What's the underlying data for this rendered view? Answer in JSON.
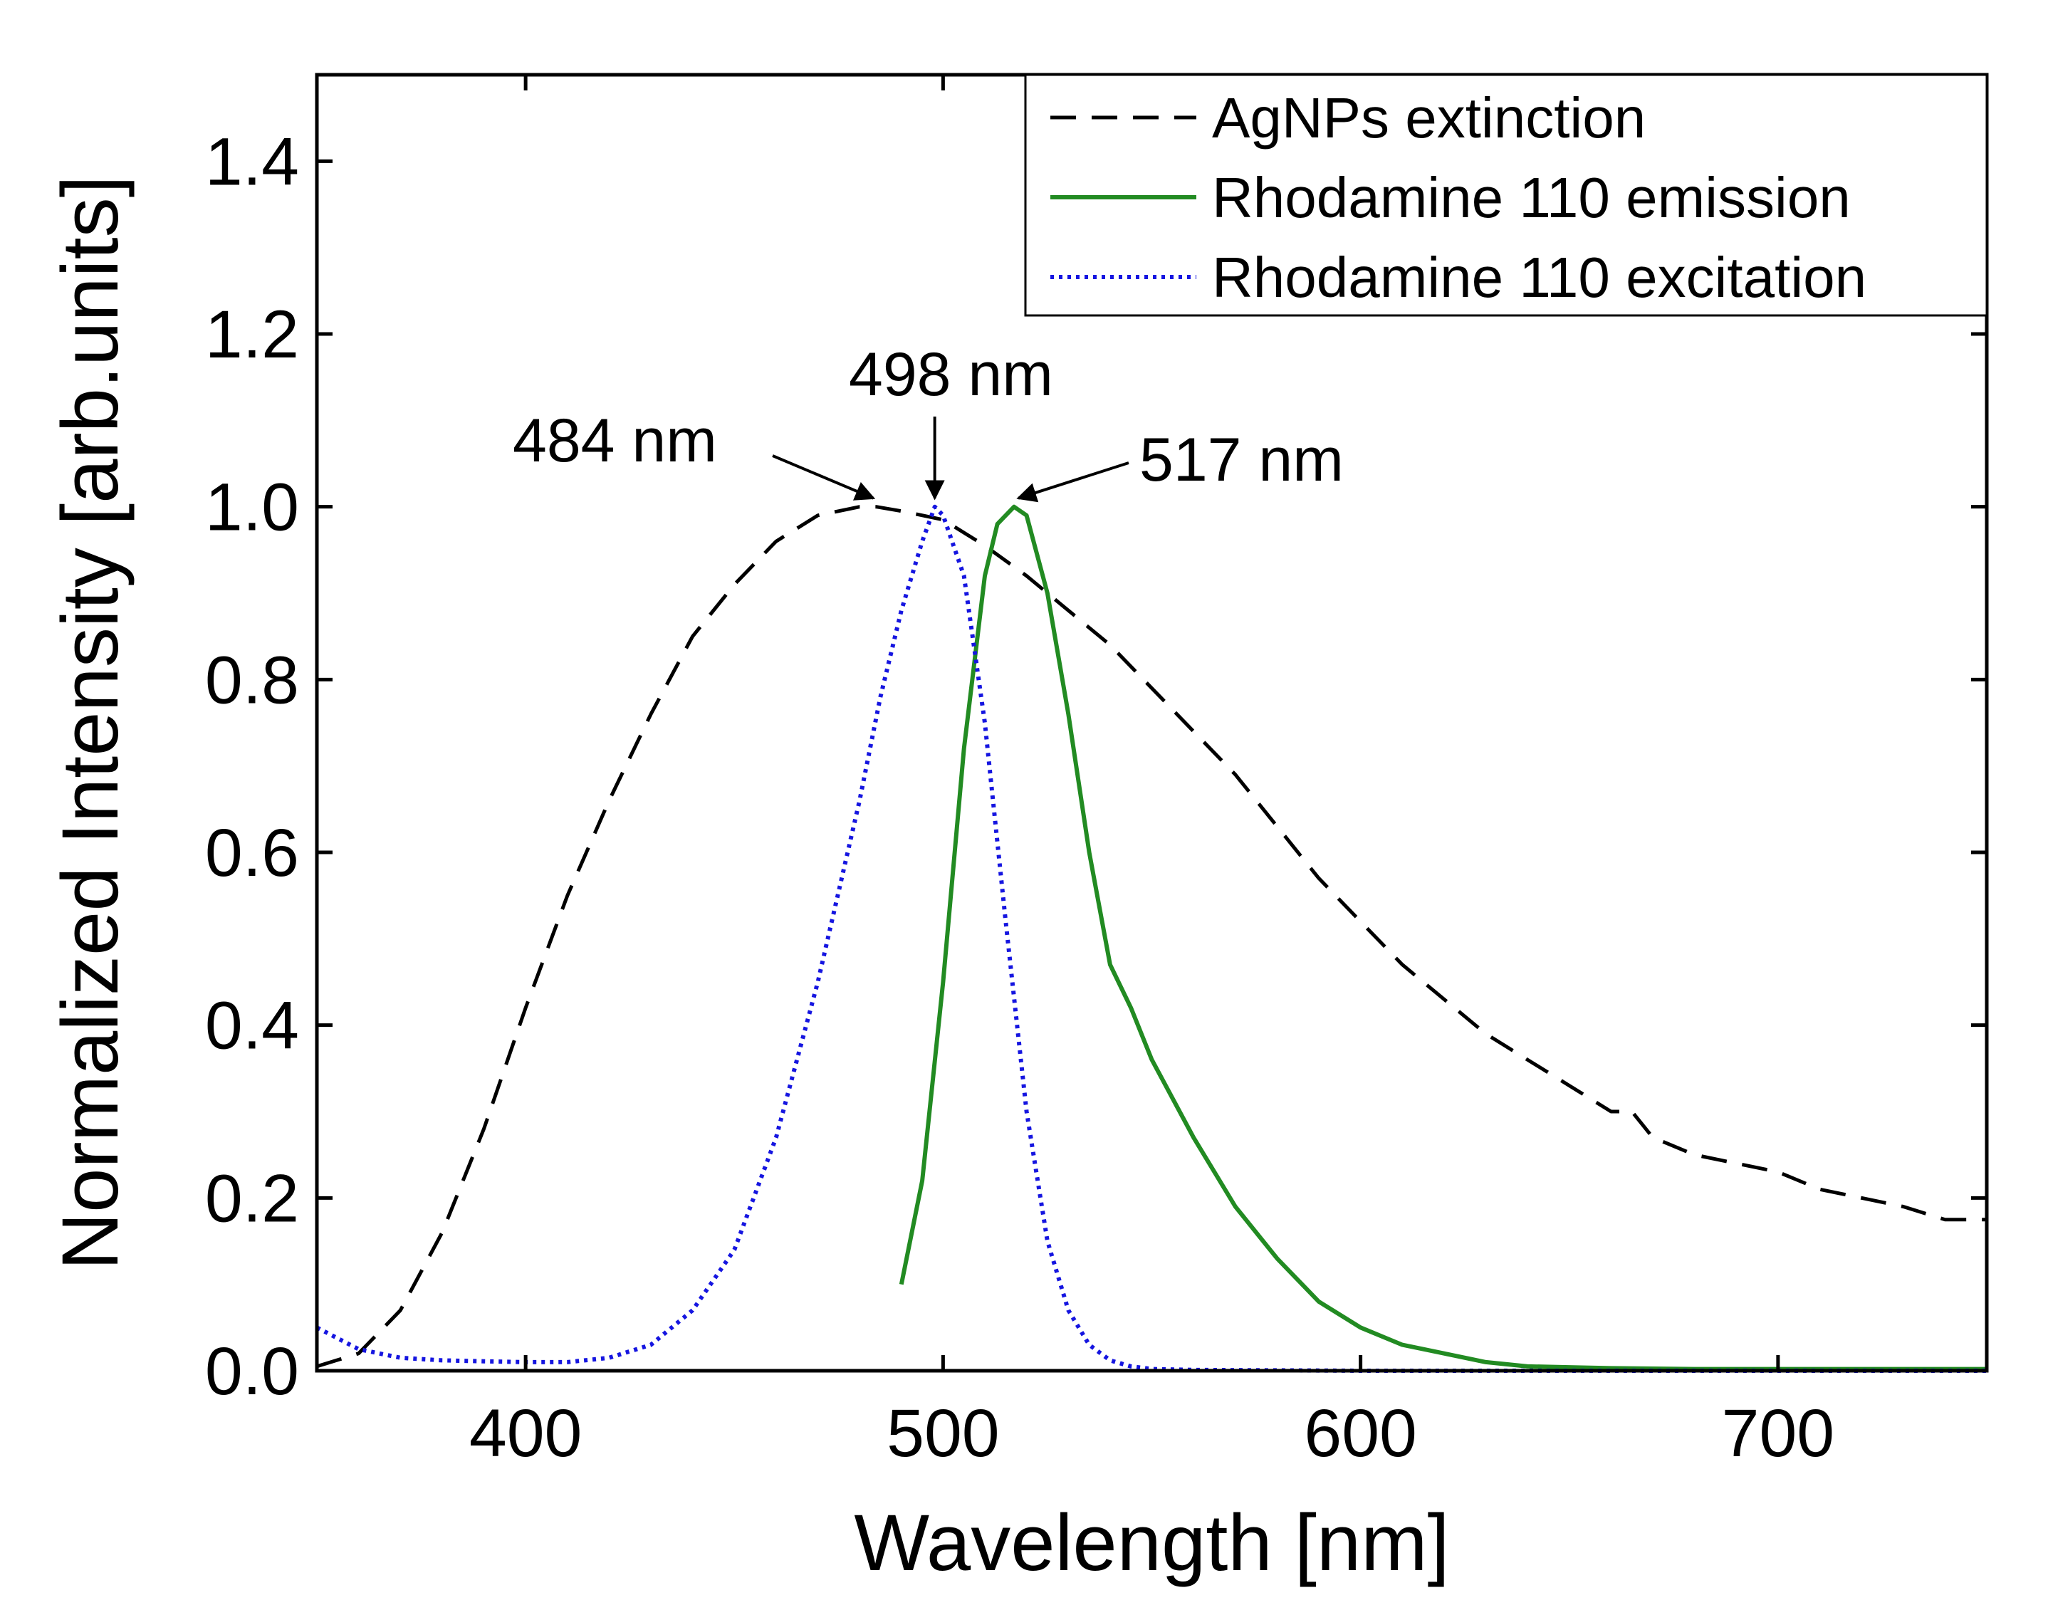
{
  "chart_data": {
    "type": "line",
    "title": "",
    "xlabel": "Wavelength [nm]",
    "ylabel": "Normalized Intensity [arb.units]",
    "xlim": [
      350,
      750
    ],
    "ylim": [
      0,
      1.5
    ],
    "xticks": [
      400,
      500,
      600,
      700
    ],
    "xtick_labels": [
      "400",
      "500",
      "600",
      "700"
    ],
    "yticks": [
      0.0,
      0.2,
      0.4,
      0.6,
      0.8,
      1.0,
      1.2,
      1.4
    ],
    "ytick_labels": [
      "0.0",
      "0.2",
      "0.4",
      "0.6",
      "0.8",
      "1.0",
      "1.2",
      "1.4"
    ],
    "grid": false,
    "legend_position": "top-right",
    "series": [
      {
        "name": "AgNPs extinction",
        "color": "#000000",
        "style": "dashed",
        "x": [
          350,
          360,
          370,
          380,
          390,
          400,
          410,
          420,
          430,
          440,
          450,
          460,
          470,
          480,
          484,
          490,
          500,
          510,
          520,
          530,
          540,
          550,
          560,
          570,
          580,
          590,
          600,
          610,
          620,
          630,
          640,
          650,
          660,
          665,
          670,
          680,
          690,
          700,
          710,
          720,
          730,
          740,
          750
        ],
        "y": [
          0.005,
          0.02,
          0.07,
          0.16,
          0.28,
          0.42,
          0.55,
          0.66,
          0.76,
          0.85,
          0.91,
          0.96,
          0.99,
          1.0,
          1.0,
          0.995,
          0.985,
          0.955,
          0.92,
          0.88,
          0.84,
          0.79,
          0.74,
          0.69,
          0.63,
          0.57,
          0.52,
          0.47,
          0.43,
          0.39,
          0.36,
          0.33,
          0.3,
          0.3,
          0.27,
          0.25,
          0.24,
          0.23,
          0.21,
          0.2,
          0.19,
          0.175,
          0.175
        ]
      },
      {
        "name": "Rhodamine 110 emission",
        "color": "#228B22",
        "style": "solid",
        "x": [
          490,
          495,
          500,
          505,
          510,
          513,
          517,
          520,
          525,
          530,
          535,
          540,
          545,
          550,
          560,
          570,
          580,
          590,
          600,
          610,
          620,
          630,
          640,
          650,
          660,
          680,
          700,
          720,
          750
        ],
        "y": [
          0.1,
          0.22,
          0.45,
          0.72,
          0.92,
          0.98,
          1.0,
          0.99,
          0.9,
          0.76,
          0.6,
          0.47,
          0.42,
          0.36,
          0.27,
          0.19,
          0.13,
          0.08,
          0.05,
          0.03,
          0.02,
          0.01,
          0.005,
          0.004,
          0.003,
          0.002,
          0.002,
          0.002,
          0.002
        ]
      },
      {
        "name": "Rhodamine 110 excitation",
        "color": "#1515E0",
        "style": "dotted",
        "x": [
          350,
          360,
          370,
          380,
          390,
          400,
          410,
          420,
          430,
          440,
          450,
          460,
          470,
          480,
          485,
          490,
          495,
          498,
          500,
          505,
          510,
          515,
          520,
          525,
          530,
          535,
          540,
          545,
          550,
          560,
          600,
          650,
          700,
          750
        ],
        "y": [
          0.05,
          0.025,
          0.015,
          0.012,
          0.011,
          0.01,
          0.01,
          0.015,
          0.03,
          0.07,
          0.14,
          0.27,
          0.45,
          0.66,
          0.78,
          0.88,
          0.96,
          1.0,
          0.99,
          0.92,
          0.75,
          0.52,
          0.3,
          0.15,
          0.07,
          0.03,
          0.012,
          0.005,
          0.002,
          0.001,
          0.0,
          0.0,
          0.0,
          0.0
        ]
      }
    ],
    "annotations": [
      {
        "text": "484 nm",
        "target_x": 484,
        "target_y": 1.0
      },
      {
        "text": "498 nm",
        "target_x": 498,
        "target_y": 1.0
      },
      {
        "text": "517 nm",
        "target_x": 517,
        "target_y": 1.0
      }
    ]
  }
}
